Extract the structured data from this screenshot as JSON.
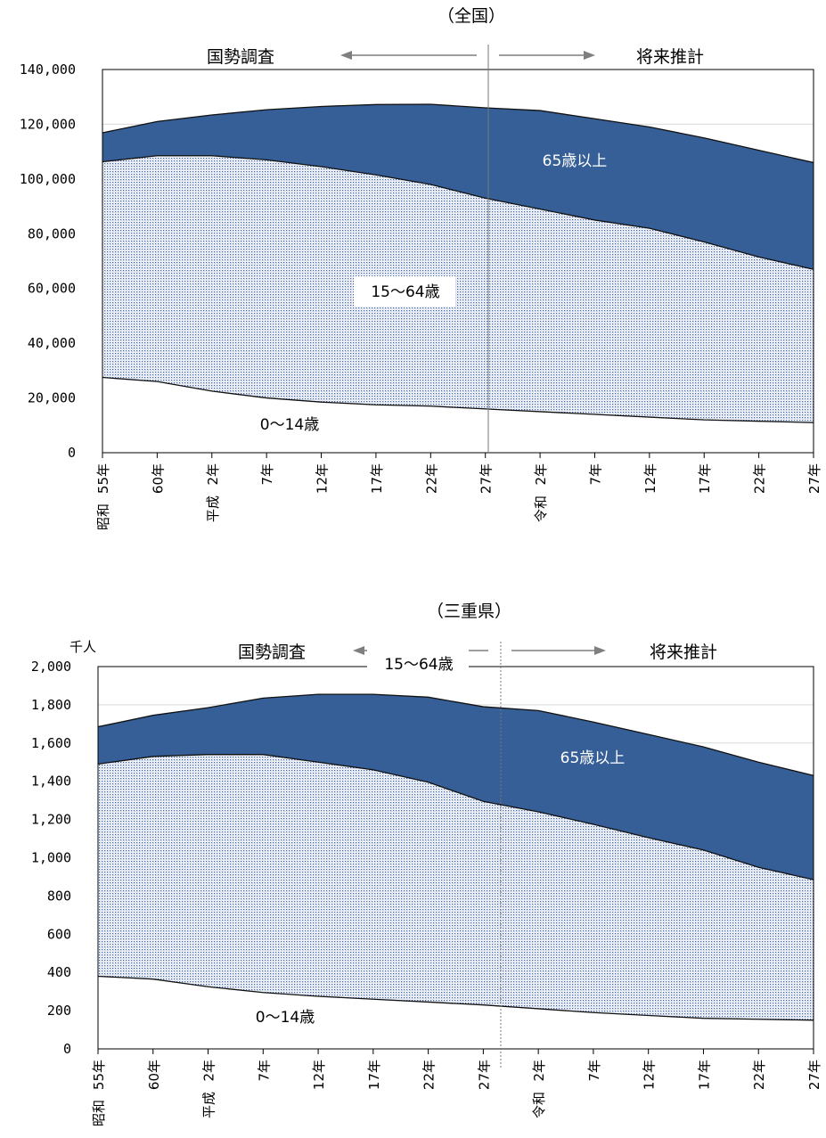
{
  "chart_data": [
    {
      "type": "area",
      "title": "（全国）",
      "unit": "",
      "period_labels": {
        "census": "国勢調査",
        "projection": "将来推計"
      },
      "categories": [
        "昭和55年",
        "60年",
        "平成 2年",
        "7年",
        "12年",
        "17年",
        "22年",
        "27年",
        "令和 2年",
        "7年",
        "12年",
        "17年",
        "22年",
        "27年"
      ],
      "era_labels": [
        "昭和",
        "",
        "平成",
        "",
        "",
        "",
        "",
        "",
        "令和",
        "",
        "",
        "",
        "",
        ""
      ],
      "cat_labels": [
        "55年",
        "60年",
        "2年",
        "7年",
        "12年",
        "17年",
        "22年",
        "27年",
        "2年",
        "7年",
        "12年",
        "17年",
        "22年",
        "27年"
      ],
      "series": [
        {
          "name": "0～14歳",
          "values": [
            27500,
            26000,
            22500,
            20000,
            18500,
            17500,
            17000,
            16000,
            15000,
            14000,
            13000,
            12000,
            11500,
            11000
          ]
        },
        {
          "name": "15～64歳",
          "values": [
            78800,
            82500,
            86000,
            87000,
            86000,
            84000,
            81000,
            77000,
            74000,
            71000,
            69000,
            65000,
            60000,
            56000
          ]
        },
        {
          "name": "65歳以上",
          "values": [
            10600,
            12500,
            14900,
            18300,
            22000,
            25700,
            29300,
            33000,
            36000,
            37000,
            37000,
            38000,
            39000,
            39000
          ]
        }
      ],
      "yticks": [
        "140,000",
        "120,000",
        "100,000",
        "80,000",
        "60,000",
        "40,000",
        "20,000",
        "0"
      ],
      "ylim": [
        0,
        140000
      ],
      "divider_after_index": 7
    },
    {
      "type": "area",
      "title": "（三重県）",
      "unit": "千人",
      "period_labels": {
        "census": "国勢調査",
        "projection": "将来推計"
      },
      "categories": [
        "昭和55年",
        "60年",
        "平成 2年",
        "7年",
        "12年",
        "17年",
        "22年",
        "27年",
        "令和 2年",
        "7年",
        "12年",
        "17年",
        "22年",
        "27年"
      ],
      "era_labels": [
        "昭和",
        "",
        "平成",
        "",
        "",
        "",
        "",
        "",
        "令和",
        "",
        "",
        "",
        "",
        ""
      ],
      "cat_labels": [
        "55年",
        "60年",
        "2年",
        "7年",
        "12年",
        "17年",
        "22年",
        "27年",
        "2年",
        "7年",
        "12年",
        "17年",
        "22年",
        "27年"
      ],
      "series": [
        {
          "name": "0～14歳",
          "values": [
            380,
            365,
            325,
            295,
            275,
            260,
            245,
            230,
            210,
            190,
            175,
            160,
            155,
            150
          ]
        },
        {
          "name": "15～64歳",
          "values": [
            1110,
            1165,
            1215,
            1245,
            1225,
            1200,
            1150,
            1065,
            1030,
            985,
            930,
            880,
            795,
            735
          ]
        },
        {
          "name": "65歳以上",
          "values": [
            195,
            215,
            245,
            295,
            355,
            395,
            445,
            495,
            530,
            535,
            540,
            540,
            550,
            545
          ]
        }
      ],
      "yticks": [
        "2,000",
        "1,800",
        "1,600",
        "1,400",
        "1,200",
        "1,000",
        "800",
        "600",
        "400",
        "200",
        "0"
      ],
      "ylim": [
        0,
        2000
      ],
      "divider_after_index": 7
    }
  ]
}
